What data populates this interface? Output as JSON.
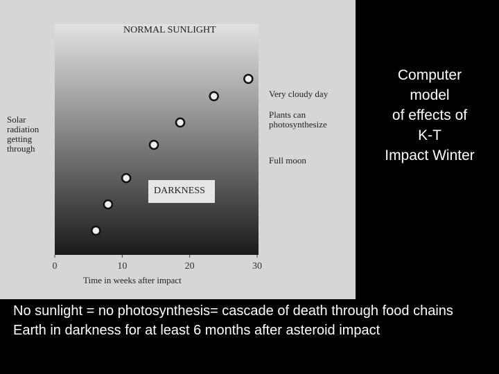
{
  "chart_data": {
    "type": "scatter",
    "title": [
      "Computer",
      "model",
      "of effects of",
      "K-T",
      "Impact Winter"
    ],
    "x_label": "Time in weeks after impact",
    "y_label": "Solar radiation getting through",
    "annotations": [
      "NORMAL SUNLIGHT",
      "DARKNESS",
      "Very cloudy day",
      "Plants can photosynthesize",
      "Full moon"
    ],
    "x": [
      6.1,
      7.9,
      10.6,
      14.7,
      18.6,
      23.6,
      28.7
    ],
    "values": [
      10.5,
      21.9,
      33.3,
      47.7,
      57.4,
      68.8,
      76.3
    ],
    "xlim": [
      0,
      30
    ],
    "xticks": [
      0,
      10,
      20,
      30
    ],
    "ylim": [
      0,
      100
    ],
    "notes": [
      "No sunlight = no photosynthesis= cascade of death through food chains",
      "Earth in darkness for at least 6 months after asteroid impact"
    ]
  }
}
